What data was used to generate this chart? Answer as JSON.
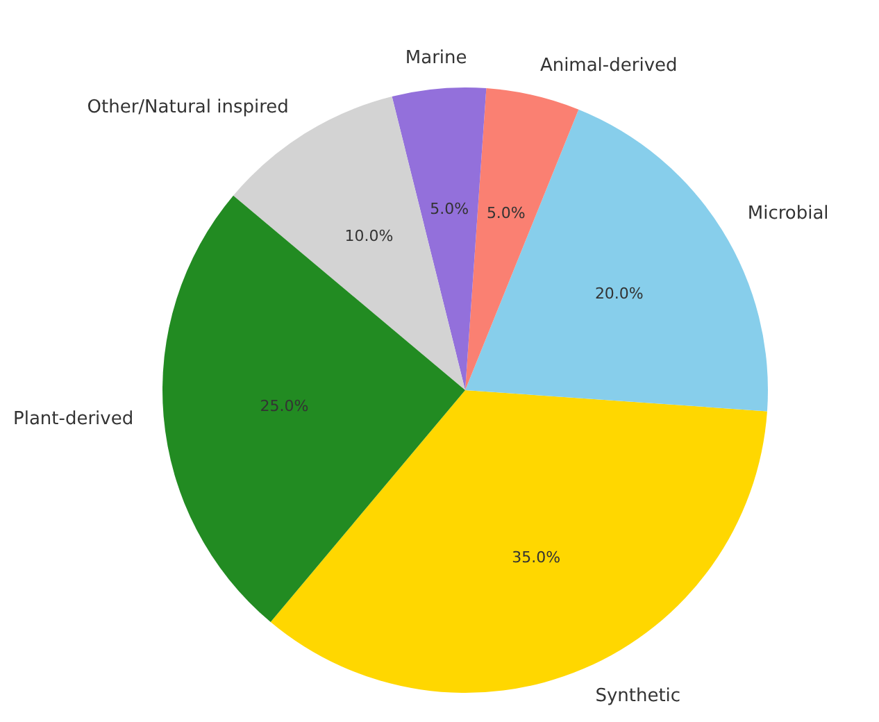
{
  "chart_data": {
    "type": "pie",
    "categories": [
      "Synthetic",
      "Microbial",
      "Animal-derived",
      "Marine",
      "Other/Natural inspired",
      "Plant-derived"
    ],
    "values": [
      35,
      20,
      5,
      5,
      10,
      25
    ],
    "value_labels": [
      "35.0%",
      "20.0%",
      "5.0%",
      "5.0%",
      "10.0%",
      "25.0%"
    ],
    "colors": [
      "#ffd700",
      "#87ceeb",
      "#fa8072",
      "#9370db",
      "#d3d3d3",
      "#228b22"
    ],
    "legend": false
  }
}
